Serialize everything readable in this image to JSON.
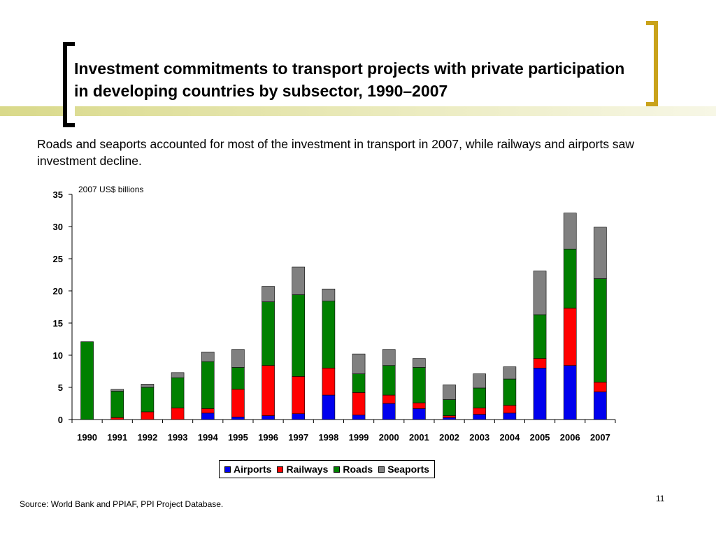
{
  "slide": {
    "title": "Investment commitments to transport projects with private participation in developing countries by subsector, 1990–2007",
    "subtitle": "Roads and seaports accounted for most of the investment in transport in 2007, while railways and airports saw investment decline.",
    "source": "Source: World Bank and PPIAF, PPI Project Database.",
    "page_number": "11"
  },
  "chart_data": {
    "type": "bar",
    "stacked": true,
    "title": "",
    "unit_label": "2007 US$ billions",
    "xlabel": "",
    "ylabel": "",
    "ylim": [
      0,
      35
    ],
    "yticks": [
      0,
      5,
      10,
      15,
      20,
      25,
      30,
      35
    ],
    "grid": false,
    "legend_position": "bottom",
    "categories": [
      "1990",
      "1991",
      "1992",
      "1993",
      "1994",
      "1995",
      "1996",
      "1997",
      "1998",
      "1999",
      "2000",
      "2001",
      "2002",
      "2003",
      "2004",
      "2005",
      "2006",
      "2007"
    ],
    "series": [
      {
        "name": "Airports",
        "color": "#0000ee",
        "values": [
          0,
          0,
          0,
          0,
          1.0,
          0.4,
          0.6,
          0.9,
          3.8,
          0.7,
          2.5,
          1.7,
          0.3,
          0.8,
          1.0,
          8.0,
          8.4,
          4.3
        ]
      },
      {
        "name": "Railways",
        "color": "#ff0000",
        "values": [
          0,
          0.3,
          1.2,
          1.8,
          0.7,
          4.3,
          7.8,
          5.8,
          4.2,
          3.5,
          1.3,
          0.9,
          0.3,
          1.0,
          1.2,
          1.5,
          8.9,
          1.5
        ]
      },
      {
        "name": "Roads",
        "color": "#008000",
        "values": [
          12.1,
          4.1,
          3.8,
          4.7,
          7.3,
          3.4,
          9.9,
          12.7,
          10.4,
          2.9,
          4.6,
          5.5,
          2.5,
          3.1,
          4.1,
          6.8,
          9.2,
          16.1
        ]
      },
      {
        "name": "Seaports",
        "color": "#808080",
        "values": [
          0,
          0.3,
          0.5,
          0.8,
          1.5,
          2.8,
          2.4,
          4.3,
          1.9,
          3.1,
          2.5,
          1.4,
          2.3,
          2.2,
          1.9,
          6.8,
          5.6,
          8.0
        ]
      }
    ]
  }
}
